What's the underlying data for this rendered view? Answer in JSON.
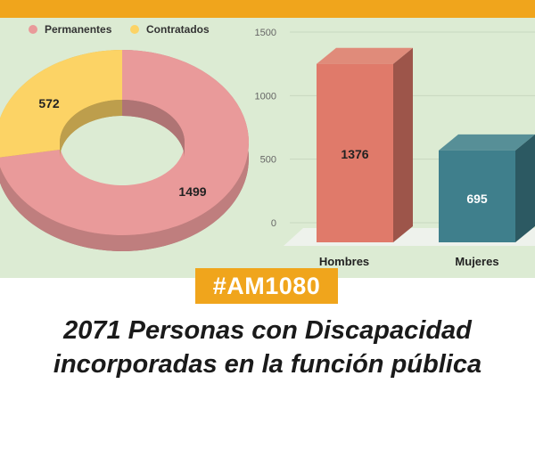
{
  "colors": {
    "accent": "#f0a51c",
    "panel_bg": "#dcebd3",
    "permanentes": "#e99a9a",
    "contratados": "#fcd365",
    "hombres": "#e07a6a",
    "mujeres": "#3f7f8c"
  },
  "chart_data": [
    {
      "type": "pie",
      "style": "donut-3d",
      "legend_position": "top-left",
      "series": [
        {
          "name": "Permanentes",
          "value": 1499,
          "color": "#e99a9a"
        },
        {
          "name": "Contratados",
          "value": 572,
          "color": "#fcd365"
        }
      ]
    },
    {
      "type": "bar",
      "style": "3d",
      "categories": [
        "Hombres",
        "Mujeres"
      ],
      "values": [
        1376,
        695
      ],
      "colors": [
        "#e07a6a",
        "#3f7f8c"
      ],
      "ylim": [
        0,
        1500
      ],
      "yticks": [
        "0",
        "500",
        "1000",
        "1500"
      ],
      "grid": true
    }
  ],
  "tag": "#AM1080",
  "headline": {
    "line1": "2071 Personas con Discapacidad",
    "line2": "incorporadas en la función pública"
  }
}
